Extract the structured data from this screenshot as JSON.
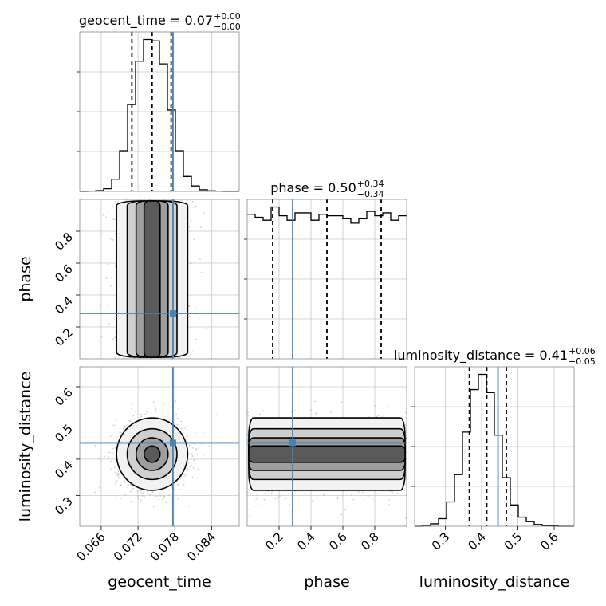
{
  "figure": {
    "colors": {
      "truth": "#4682b4",
      "hist": "#000000",
      "grid": "#c8c8c8",
      "density": "#000000"
    }
  },
  "parameters": [
    {
      "id": "geocent_time",
      "label": "geocent_time",
      "range": [
        0.0625,
        0.0885
      ],
      "ticks": [
        "0.066",
        "0.072",
        "0.078",
        "0.084"
      ],
      "tick_values": [
        0.066,
        0.072,
        0.078,
        0.084
      ],
      "title_main": "geocent_time = 0.07",
      "title_sup": "+0.00",
      "title_sub": "−0.00",
      "quantiles": [
        0.071,
        0.0743,
        0.0774
      ],
      "truth": 0.0777
    },
    {
      "id": "phase",
      "label": "phase",
      "range": [
        0.0,
        1.0
      ],
      "ticks": [
        "0.2",
        "0.4",
        "0.6",
        "0.8"
      ],
      "tick_values": [
        0.2,
        0.4,
        0.6,
        0.8
      ],
      "title_main": "phase = 0.50",
      "title_sup": "+0.34",
      "title_sub": "−0.34",
      "quantiles": [
        0.16,
        0.5,
        0.84
      ],
      "truth": 0.285
    },
    {
      "id": "luminosity_distance",
      "label": "luminosity_distance",
      "range": [
        0.215,
        0.655
      ],
      "ticks": [
        "0.3",
        "0.4",
        "0.5",
        "0.6"
      ],
      "tick_values": [
        0.3,
        0.4,
        0.5,
        0.6
      ],
      "title_main": "luminosity_distance = 0.41",
      "title_sup": "+0.06",
      "title_sub": "−0.05",
      "quantiles": [
        0.366,
        0.414,
        0.468
      ],
      "truth": 0.445
    }
  ],
  "chart_data": {
    "type": "corner",
    "histograms": [
      {
        "param": "geocent_time",
        "bin_edges": [
          0.0625,
          0.0638,
          0.0651,
          0.0664,
          0.0677,
          0.069,
          0.0703,
          0.0716,
          0.0729,
          0.0742,
          0.0755,
          0.0768,
          0.0781,
          0.0794,
          0.0807,
          0.082,
          0.0833,
          0.0846,
          0.0859,
          0.0872,
          0.0885
        ],
        "counts": [
          0,
          1,
          3,
          10,
          45,
          150,
          320,
          480,
          560,
          555,
          470,
          300,
          150,
          55,
          20,
          6,
          2,
          1,
          0,
          0
        ]
      },
      {
        "param": "phase",
        "bin_edges": [
          0.0,
          0.05,
          0.1,
          0.15,
          0.2,
          0.25,
          0.3,
          0.35,
          0.4,
          0.45,
          0.5,
          0.55,
          0.6,
          0.65,
          0.7,
          0.75,
          0.8,
          0.85,
          0.9,
          0.95,
          1.0
        ],
        "counts": [
          490,
          480,
          470,
          515,
          485,
          470,
          495,
          495,
          470,
          490,
          485,
          485,
          475,
          460,
          475,
          500,
          485,
          495,
          470,
          485
        ]
      },
      {
        "param": "luminosity_distance",
        "bin_edges": [
          0.215,
          0.237,
          0.259,
          0.281,
          0.303,
          0.325,
          0.347,
          0.369,
          0.391,
          0.413,
          0.435,
          0.457,
          0.479,
          0.501,
          0.523,
          0.545,
          0.567,
          0.589,
          0.611,
          0.633,
          0.655
        ],
        "counts": [
          0,
          3,
          8,
          25,
          80,
          170,
          310,
          450,
          500,
          440,
          300,
          160,
          70,
          30,
          15,
          6,
          2,
          1,
          0,
          0
        ]
      }
    ],
    "pairs": [
      {
        "x": "geocent_time",
        "y": "phase"
      },
      {
        "x": "geocent_time",
        "y": "luminosity_distance"
      },
      {
        "x": "phase",
        "y": "luminosity_distance"
      }
    ],
    "truths": {
      "geocent_time": 0.0777,
      "phase": 0.285,
      "luminosity_distance": 0.445
    },
    "grid": true
  }
}
